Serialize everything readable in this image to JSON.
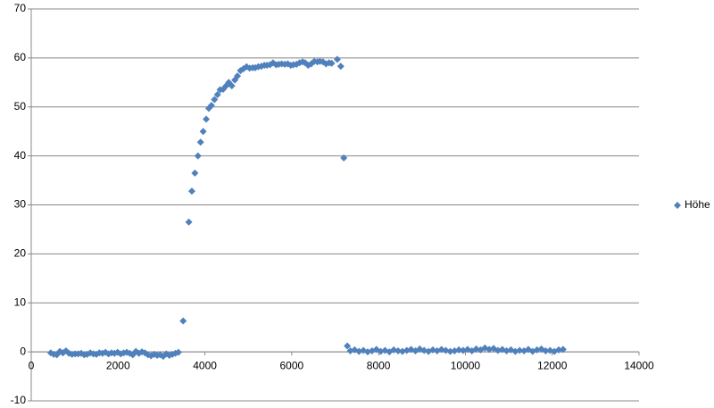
{
  "chart_data": {
    "type": "scatter",
    "series": [
      {
        "name": "Höhe",
        "color": "#4f81bd",
        "x": [
          450,
          520,
          590,
          660,
          730,
          800,
          870,
          940,
          1010,
          1080,
          1150,
          1220,
          1290,
          1360,
          1430,
          1500,
          1570,
          1640,
          1710,
          1780,
          1850,
          1920,
          1990,
          2060,
          2130,
          2200,
          2270,
          2340,
          2410,
          2480,
          2550,
          2620,
          2690,
          2760,
          2830,
          2900,
          2970,
          3040,
          3110,
          3180,
          3250,
          3320,
          3390,
          3500,
          3630,
          3700,
          3770,
          3840,
          3900,
          3960,
          4030,
          4090,
          4150,
          4220,
          4290,
          4350,
          4420,
          4490,
          4550,
          4620,
          4690,
          4750,
          4820,
          4890,
          4960,
          5030,
          5100,
          5160,
          5230,
          5300,
          5370,
          5430,
          5500,
          5570,
          5640,
          5700,
          5770,
          5840,
          5910,
          5980,
          6040,
          6110,
          6180,
          6250,
          6310,
          6380,
          6450,
          6520,
          6590,
          6650,
          6720,
          6790,
          6860,
          6920,
          7050,
          7130,
          7200,
          7280,
          7350,
          7450,
          7550,
          7650,
          7750,
          7850,
          7950,
          8050,
          8150,
          8250,
          8350,
          8450,
          8550,
          8650,
          8750,
          8850,
          8950,
          9050,
          9150,
          9250,
          9350,
          9450,
          9550,
          9650,
          9750,
          9850,
          9950,
          10050,
          10150,
          10250,
          10350,
          10450,
          10550,
          10650,
          10750,
          10850,
          10950,
          11050,
          11150,
          11250,
          11350,
          11450,
          11550,
          11650,
          11750,
          11850,
          11950,
          12050,
          12150,
          12250
        ],
        "values": [
          -0.2,
          -0.5,
          -0.6,
          0.1,
          -0.2,
          0.2,
          -0.3,
          -0.5,
          -0.4,
          -0.4,
          -0.3,
          -0.6,
          -0.5,
          -0.2,
          -0.4,
          -0.5,
          -0.2,
          -0.3,
          -0.1,
          -0.4,
          -0.2,
          -0.3,
          -0.1,
          -0.4,
          -0.2,
          -0.1,
          -0.3,
          -0.6,
          0.1,
          -0.3,
          0,
          -0.2,
          -0.6,
          -0.8,
          -0.5,
          -0.7,
          -0.6,
          -0.9,
          -0.4,
          -0.7,
          -0.5,
          -0.3,
          -0.1,
          6.3,
          26.5,
          32.8,
          36.5,
          40,
          42.8,
          45,
          47.5,
          49.7,
          50.3,
          51.5,
          52.5,
          53.5,
          53.6,
          54.3,
          55,
          54.3,
          55.5,
          56.3,
          57.4,
          57.8,
          58.2,
          57.9,
          58,
          58,
          58.2,
          58.3,
          58.5,
          58.5,
          58.6,
          59,
          58.6,
          58.7,
          58.8,
          58.7,
          58.8,
          58.5,
          58.6,
          58.7,
          59,
          59.2,
          59,
          58.5,
          58.8,
          59.3,
          59.2,
          59.3,
          59.2,
          58.8,
          59,
          58.9,
          59.7,
          58.3,
          39.6,
          1.2,
          0.2,
          0.4,
          0.1,
          0.3,
          0,
          0.2,
          0.5,
          0.1,
          0.3,
          0,
          0.4,
          0.2,
          0.1,
          0.3,
          0.5,
          0.2,
          0.6,
          0.3,
          0.1,
          0.4,
          0.2,
          0.5,
          0.3,
          0.1,
          0.2,
          0.4,
          0.3,
          0.5,
          0.2,
          0.6,
          0.4,
          0.8,
          0.5,
          0.7,
          0.3,
          0.5,
          0.2,
          0.4,
          0.1,
          0.3,
          0.2,
          0.5,
          0.1,
          0.4,
          0.6,
          0.2,
          0.3,
          0.1,
          0.4,
          0.5
        ]
      }
    ],
    "xlim": [
      0,
      14000
    ],
    "xticks": [
      0,
      2000,
      4000,
      6000,
      8000,
      10000,
      12000,
      14000
    ],
    "ylim": [
      -10,
      70
    ],
    "yticks": [
      -10,
      0,
      10,
      20,
      30,
      40,
      50,
      60,
      70
    ],
    "grid": true,
    "legend": "right"
  }
}
